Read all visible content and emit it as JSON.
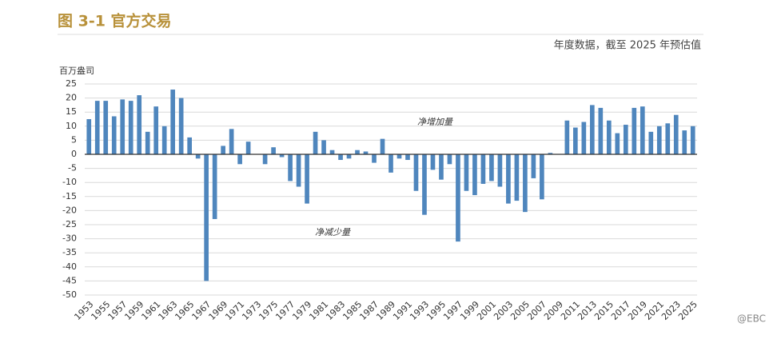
{
  "chart_data": {
    "type": "bar",
    "title": "图 3-1  官方交易",
    "subtitle": "年度数据，截至 2025 年预估值",
    "y_label": "百万盎司",
    "annotations": [
      "净增加量",
      "净减少量"
    ],
    "watermark": "@EBC",
    "color": "#4f86bd",
    "grid": true,
    "ylim": [
      -50,
      25
    ],
    "yticks": [
      -50,
      -45,
      -40,
      -35,
      -30,
      -25,
      -20,
      -15,
      -10,
      -5,
      0,
      5,
      10,
      15,
      20,
      25
    ],
    "categories": [
      "1953",
      null,
      "1955",
      null,
      "1957",
      null,
      "1959",
      null,
      "1961",
      null,
      "1963",
      null,
      "1965",
      null,
      "1967",
      null,
      "1969",
      null,
      "1971",
      null,
      "1973",
      null,
      "1975",
      null,
      "1977",
      null,
      "1979",
      null,
      "1981",
      null,
      "1983",
      null,
      "1985",
      null,
      "1987",
      null,
      "1989",
      null,
      "1991",
      null,
      "1993",
      null,
      "1995",
      null,
      "1997",
      null,
      "1999",
      null,
      "2001",
      null,
      "2003",
      null,
      "2005",
      null,
      "2007",
      null,
      "2009",
      null,
      "2011",
      null,
      "2013",
      null,
      "2015",
      null,
      "2017",
      null,
      "2019",
      null,
      "2021",
      null,
      "2023",
      null,
      "2025"
    ],
    "values": [
      12.5,
      19,
      19,
      13.5,
      19.5,
      19,
      21,
      8,
      17,
      10,
      23,
      20,
      6,
      -1.5,
      -45,
      -23,
      3,
      9,
      -3.5,
      4.5,
      0,
      -3.5,
      2.5,
      -1,
      -9.5,
      -11.5,
      -17.5,
      8,
      5,
      1.5,
      -2,
      -1.5,
      1.5,
      1,
      -3,
      5.5,
      -6.5,
      -1.5,
      -2,
      -13,
      -21.5,
      -5.5,
      -9,
      -3.5,
      -31,
      -13,
      -14.5,
      -10.5,
      -9.5,
      -11.5,
      -17.5,
      -16.5,
      -20.5,
      -8.5,
      -16,
      0.5,
      0,
      12,
      9.5,
      11.5,
      17.5,
      16.5,
      12,
      7.5,
      10.5,
      16.5,
      17,
      8,
      10,
      11,
      14,
      8.5,
      10
    ]
  }
}
